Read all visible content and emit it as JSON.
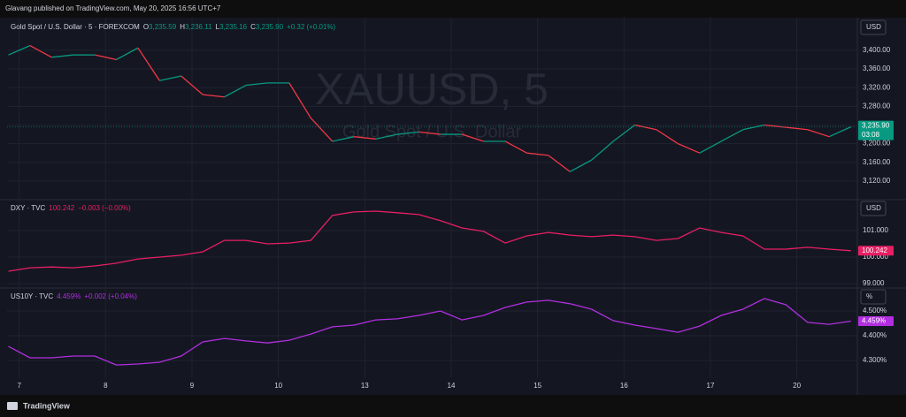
{
  "header": {
    "text": "Glavang published on TradingView.com, May 20, 2025 16:56 UTC+7"
  },
  "footer": {
    "logo": "TradingView"
  },
  "chart_data": {
    "type": "line",
    "x": [
      -0.125,
      0.125,
      0.375,
      0.625,
      0.875,
      1.125,
      1.375,
      1.625,
      1.875,
      2.125,
      2.375,
      2.625,
      2.875,
      3.125,
      3.375,
      3.625,
      3.875,
      4.125,
      4.375,
      4.625,
      4.875,
      5.125,
      5.375,
      5.625,
      5.875,
      6.125,
      6.375,
      6.625,
      6.875,
      7.125,
      7.375,
      7.625,
      7.875,
      8.125,
      8.375,
      8.625,
      8.875,
      9.125,
      9.375,
      9.625
    ],
    "xlim": [
      -0.14,
      9.69
    ],
    "xticks": [
      {
        "value": 0,
        "label": "7"
      },
      {
        "value": 1,
        "label": "8"
      },
      {
        "value": 2,
        "label": "9"
      },
      {
        "value": 3,
        "label": "10"
      },
      {
        "value": 4,
        "label": "13"
      },
      {
        "value": 5,
        "label": "14"
      },
      {
        "value": 6,
        "label": "15"
      },
      {
        "value": 7,
        "label": "16"
      },
      {
        "value": 8,
        "label": "17"
      },
      {
        "value": 9,
        "label": "20"
      }
    ],
    "grid": true,
    "panes": [
      {
        "watermark": "XAUUSD, 5",
        "watermark_subtitle": "Gold Spot / U.S. Dollar",
        "currency": "USD",
        "ohlc": [
          {
            "key": "O",
            "text": "3,235.59"
          },
          {
            "key": "H",
            "text": "3,236.11"
          },
          {
            "key": "L",
            "text": "3,235.16"
          },
          {
            "key": "C",
            "text": "3,235.90"
          }
        ],
        "change": "+0.32 (+0.01%)",
        "last_label": "3,235.90",
        "countdown": "03:08",
        "up_color": "#089981",
        "down_color": "#f23645",
        "label_color": "#089981",
        "series": [
          {
            "name": "Gold Spot / U.S. Dollar · 5 · FOREXCOM",
            "color": "#089981",
            "values": [
              3390,
              3410,
              3385,
              3390,
              3390,
              3380,
              3405,
              3335,
              3345,
              3305,
              3300,
              3325,
              3330,
              3330,
              3255,
              3205,
              3215,
              3210,
              3220,
              3225,
              3220,
              3220,
              3205,
              3205,
              3180,
              3175,
              3140,
              3165,
              3205,
              3240,
              3230,
              3200,
              3180,
              3205,
              3230,
              3240,
              3235,
              3230,
              3215,
              3235.9
            ]
          }
        ],
        "ylim": [
          3082,
          3466
        ],
        "yticks": [
          {
            "value": 3120,
            "label": "3,120.00"
          },
          {
            "value": 3160,
            "label": "3,160.00"
          },
          {
            "value": 3200,
            "label": "3,200.00"
          },
          {
            "value": 3240,
            "label": "3,240.00"
          },
          {
            "value": 3280,
            "label": "3,280.00"
          },
          {
            "value": 3320,
            "label": "3,320.00"
          },
          {
            "value": 3360,
            "label": "3,360.00"
          },
          {
            "value": 3400,
            "label": "3,400.00"
          }
        ]
      },
      {
        "currency": "USD",
        "last_text": "100.242",
        "change": "−0.003 (−0.00%)",
        "last_label": "100.242",
        "label_color": "#e91e63",
        "series": [
          {
            "name": "DXY · TVC",
            "color": "#e91e63",
            "values": [
              99.47,
              99.6,
              99.63,
              99.6,
              99.67,
              99.77,
              99.93,
              100.0,
              100.07,
              100.2,
              100.63,
              100.63,
              100.5,
              100.53,
              100.63,
              101.57,
              101.7,
              101.73,
              101.67,
              101.6,
              101.37,
              101.1,
              100.97,
              100.53,
              100.8,
              100.93,
              100.83,
              100.77,
              100.83,
              100.77,
              100.63,
              100.7,
              101.1,
              100.93,
              100.8,
              100.3,
              100.3,
              100.37,
              100.3,
              100.242
            ]
          }
        ],
        "ylim": [
          98.87,
          102.13
        ],
        "yticks": [
          {
            "value": 99,
            "label": "99.000"
          },
          {
            "value": 100,
            "label": "100.000"
          },
          {
            "value": 101,
            "label": "101.000"
          }
        ]
      },
      {
        "currency": "%",
        "last_text": "4.459%",
        "change": "+0.002 (+0.04%)",
        "last_label": "4.459%",
        "label_color": "#b22ee0",
        "series": [
          {
            "name": "US10Y · TVC",
            "color": "#b22ee0",
            "values": [
              4.357,
              4.311,
              4.311,
              4.318,
              4.318,
              4.282,
              4.286,
              4.293,
              4.318,
              4.375,
              4.389,
              4.379,
              4.371,
              4.382,
              4.407,
              4.436,
              4.443,
              4.464,
              4.468,
              4.482,
              4.5,
              4.464,
              4.482,
              4.514,
              4.536,
              4.543,
              4.529,
              4.507,
              4.461,
              4.443,
              4.429,
              4.414,
              4.439,
              4.482,
              4.507,
              4.55,
              4.525,
              4.454,
              4.446,
              4.459
            ]
          }
        ],
        "ylim": [
          4.229,
          4.589
        ],
        "yticks": [
          {
            "value": 4.3,
            "label": "4.300%"
          },
          {
            "value": 4.4,
            "label": "4.400%"
          },
          {
            "value": 4.5,
            "label": "4.500%"
          }
        ]
      }
    ]
  }
}
